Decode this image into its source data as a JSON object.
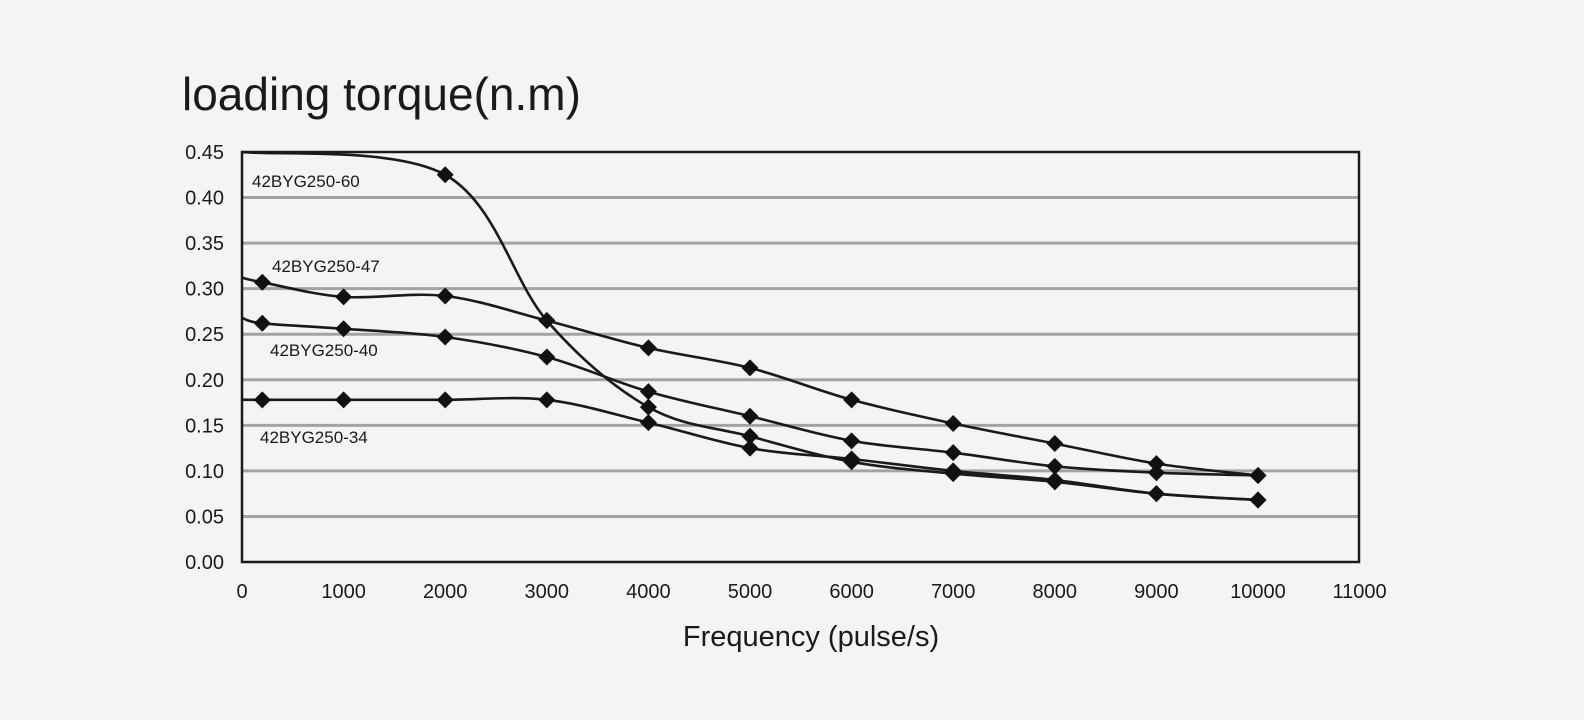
{
  "chart_data": {
    "type": "line",
    "title": "loading torque(n.m)",
    "xlabel": "Frequency (pulse/s)",
    "ylabel": "",
    "xlim": [
      0,
      11000
    ],
    "ylim": [
      0,
      0.45
    ],
    "xticks": [
      "0",
      "1000",
      "2000",
      "3000",
      "4000",
      "5000",
      "6000",
      "7000",
      "8000",
      "9000",
      "10000",
      "11000"
    ],
    "yticks": [
      "0.00",
      "0.05",
      "0.10",
      "0.15",
      "0.20",
      "0.25",
      "0.30",
      "0.35",
      "0.40",
      "0.45"
    ],
    "grid": "horizontal",
    "series": [
      {
        "name": "42BYG250-60",
        "line_start": [
          0,
          0.45
        ],
        "points": [
          [
            2000,
            0.425
          ],
          [
            3000,
            0.265
          ],
          [
            4000,
            0.17
          ],
          [
            5000,
            0.138
          ],
          [
            6000,
            0.11
          ],
          [
            7000,
            0.097
          ],
          [
            8000,
            0.088
          ],
          [
            9000,
            0.075
          ],
          [
            10000,
            0.068
          ]
        ]
      },
      {
        "name": "42BYG250-47",
        "line_start": [
          0,
          0.312
        ],
        "points": [
          [
            200,
            0.307
          ],
          [
            1000,
            0.291
          ],
          [
            2000,
            0.292
          ],
          [
            3000,
            0.265
          ],
          [
            4000,
            0.235
          ],
          [
            5000,
            0.213
          ],
          [
            6000,
            0.178
          ],
          [
            7000,
            0.152
          ],
          [
            8000,
            0.13
          ],
          [
            9000,
            0.108
          ],
          [
            10000,
            0.095
          ]
        ]
      },
      {
        "name": "42BYG250-40",
        "line_start": [
          0,
          0.268
        ],
        "points": [
          [
            200,
            0.262
          ],
          [
            1000,
            0.256
          ],
          [
            2000,
            0.247
          ],
          [
            3000,
            0.225
          ],
          [
            4000,
            0.187
          ],
          [
            5000,
            0.16
          ],
          [
            6000,
            0.133
          ],
          [
            7000,
            0.12
          ],
          [
            8000,
            0.105
          ],
          [
            9000,
            0.098
          ],
          [
            10000,
            0.095
          ]
        ]
      },
      {
        "name": "42BYG250-34",
        "line_start": [
          0,
          0.178
        ],
        "points": [
          [
            200,
            0.178
          ],
          [
            1000,
            0.178
          ],
          [
            2000,
            0.178
          ],
          [
            3000,
            0.178
          ],
          [
            4000,
            0.153
          ],
          [
            5000,
            0.125
          ],
          [
            6000,
            0.113
          ],
          [
            7000,
            0.1
          ],
          [
            8000,
            0.09
          ],
          [
            9000,
            0.075
          ],
          [
            10000,
            0.068
          ]
        ]
      }
    ]
  }
}
